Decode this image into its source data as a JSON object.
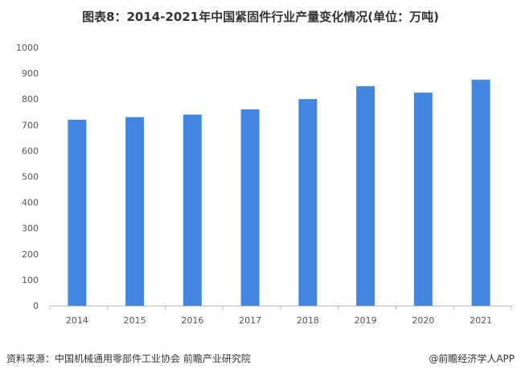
{
  "chart_data": {
    "type": "bar",
    "title": "图表8：2014-2021年中国紧固件行业产量变化情况(单位：万吨)",
    "categories": [
      "2014",
      "2015",
      "2016",
      "2017",
      "2018",
      "2019",
      "2020",
      "2021"
    ],
    "values": [
      720,
      730,
      740,
      760,
      800,
      850,
      825,
      875
    ],
    "ylim": [
      0,
      1000
    ],
    "yticks": [
      0,
      100,
      200,
      300,
      400,
      500,
      600,
      700,
      800,
      900,
      1000
    ],
    "xlabel": "",
    "ylabel": "",
    "grid": false,
    "legend": "none",
    "bar_color": "#4286E0"
  },
  "footer": {
    "source": "资料来源：中国机械通用零部件工业协会 前瞻产业研究院",
    "brand": "@前瞻经济学人APP"
  }
}
